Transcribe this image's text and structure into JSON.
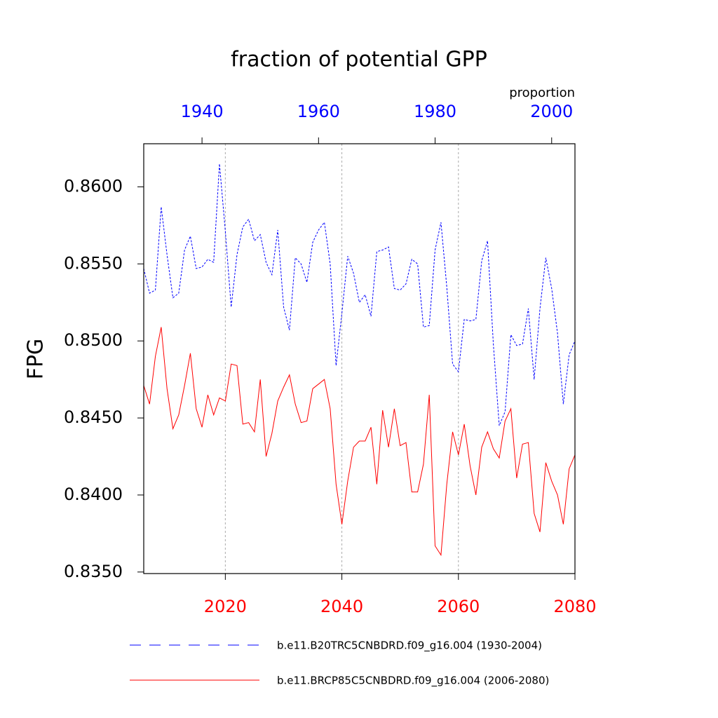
{
  "chart_data": {
    "type": "line",
    "title": "fraction of potential GPP",
    "subtitle": "proportion",
    "ylabel": "FPG",
    "xlim": [
      2006,
      2080
    ],
    "xticks": [
      2020,
      2040,
      2060,
      2080
    ],
    "xcolor": "#ff0000",
    "x2lim": [
      1930,
      2004
    ],
    "x2ticks": [
      1940,
      1960,
      1980,
      2000
    ],
    "x2color": "#0000ff",
    "ylim": [
      0.8349,
      0.8628
    ],
    "yticks": [
      {
        "value": 0.835,
        "label": "0.8350"
      },
      {
        "value": 0.84,
        "label": "0.8400"
      },
      {
        "value": 0.845,
        "label": "0.8450"
      },
      {
        "value": 0.85,
        "label": "0.8500"
      },
      {
        "value": 0.855,
        "label": "0.8550"
      },
      {
        "value": 0.86,
        "label": "0.8600"
      }
    ],
    "grid": true,
    "series": [
      {
        "name": "b.e11.B20TRC5CNBDRD.f09_g16.004 (1930-2004)",
        "color": "#0000ff",
        "dashed": true,
        "axis": "x2",
        "x": [
          1930,
          1931,
          1932,
          1933,
          1934,
          1935,
          1936,
          1937,
          1938,
          1939,
          1940,
          1941,
          1942,
          1943,
          1944,
          1945,
          1946,
          1947,
          1948,
          1949,
          1950,
          1951,
          1952,
          1953,
          1954,
          1955,
          1956,
          1957,
          1958,
          1959,
          1960,
          1961,
          1962,
          1963,
          1964,
          1965,
          1966,
          1967,
          1968,
          1969,
          1970,
          1971,
          1972,
          1973,
          1974,
          1975,
          1976,
          1977,
          1978,
          1979,
          1980,
          1981,
          1982,
          1983,
          1984,
          1985,
          1986,
          1987,
          1988,
          1989,
          1990,
          1991,
          1992,
          1993,
          1994,
          1995,
          1996,
          1997,
          1998,
          1999,
          2000,
          2001,
          2002,
          2003,
          2004
        ],
        "values": [
          0.8547,
          0.8531,
          0.8533,
          0.8587,
          0.8556,
          0.8528,
          0.8531,
          0.8559,
          0.8568,
          0.8547,
          0.8548,
          0.8553,
          0.8551,
          0.8615,
          0.8571,
          0.8522,
          0.8556,
          0.8574,
          0.8579,
          0.8565,
          0.8569,
          0.8551,
          0.8543,
          0.8572,
          0.8522,
          0.8507,
          0.8554,
          0.855,
          0.8538,
          0.8564,
          0.8572,
          0.8577,
          0.855,
          0.8484,
          0.8518,
          0.8555,
          0.8544,
          0.8525,
          0.853,
          0.8516,
          0.8558,
          0.8559,
          0.8561,
          0.8534,
          0.8533,
          0.8537,
          0.8553,
          0.855,
          0.8509,
          0.851,
          0.8559,
          0.8577,
          0.8535,
          0.8485,
          0.848,
          0.8514,
          0.8513,
          0.8514,
          0.8552,
          0.8565,
          0.8498,
          0.8445,
          0.8454,
          0.8504,
          0.8497,
          0.8498,
          0.8521,
          0.8475,
          0.8521,
          0.8554,
          0.8534,
          0.8505,
          0.8459,
          0.8491,
          0.85
        ]
      },
      {
        "name": "b.e11.BRCP85C5CNBDRD.f09_g16.004 (2006-2080)",
        "color": "#ff0000",
        "dashed": false,
        "axis": "x",
        "x": [
          2006,
          2007,
          2008,
          2009,
          2010,
          2011,
          2012,
          2013,
          2014,
          2015,
          2016,
          2017,
          2018,
          2019,
          2020,
          2021,
          2022,
          2023,
          2024,
          2025,
          2026,
          2027,
          2028,
          2029,
          2030,
          2031,
          2032,
          2033,
          2034,
          2035,
          2036,
          2037,
          2038,
          2039,
          2040,
          2041,
          2042,
          2043,
          2044,
          2045,
          2046,
          2047,
          2048,
          2049,
          2050,
          2051,
          2052,
          2053,
          2054,
          2055,
          2056,
          2057,
          2058,
          2059,
          2060,
          2061,
          2062,
          2063,
          2064,
          2065,
          2066,
          2067,
          2068,
          2069,
          2070,
          2071,
          2072,
          2073,
          2074,
          2075,
          2076,
          2077,
          2078,
          2079,
          2080
        ],
        "values": [
          0.8471,
          0.8459,
          0.849,
          0.8509,
          0.8469,
          0.8443,
          0.8452,
          0.8471,
          0.8492,
          0.8456,
          0.8444,
          0.8465,
          0.8452,
          0.8463,
          0.8461,
          0.8485,
          0.8484,
          0.8446,
          0.8447,
          0.8441,
          0.8475,
          0.8425,
          0.844,
          0.8461,
          0.847,
          0.8478,
          0.8459,
          0.8447,
          0.8448,
          0.8469,
          0.8472,
          0.8475,
          0.8456,
          0.8407,
          0.8381,
          0.8409,
          0.8431,
          0.8435,
          0.8435,
          0.8444,
          0.8407,
          0.8455,
          0.8431,
          0.8456,
          0.8432,
          0.8434,
          0.8402,
          0.8402,
          0.842,
          0.8465,
          0.8367,
          0.8361,
          0.8407,
          0.8441,
          0.8426,
          0.8446,
          0.8419,
          0.84,
          0.8431,
          0.8441,
          0.843,
          0.8424,
          0.8448,
          0.8456,
          0.8411,
          0.8433,
          0.8434,
          0.8388,
          0.8376,
          0.8421,
          0.8409,
          0.84,
          0.8381,
          0.8417,
          0.8426
        ]
      }
    ]
  }
}
